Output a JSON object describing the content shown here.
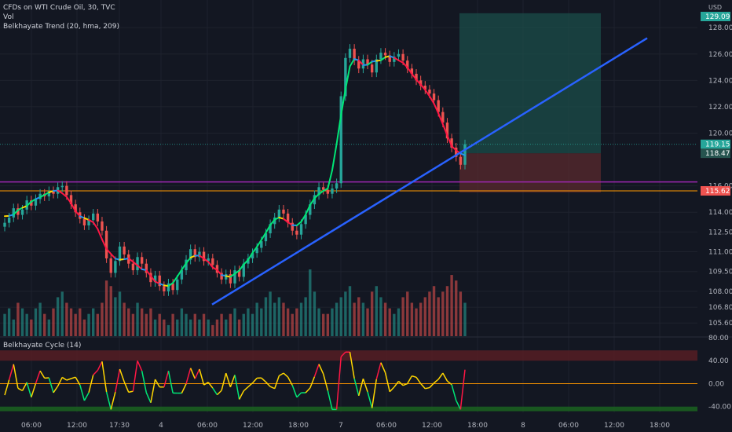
{
  "header": {
    "title": "CFDs on WTI Crude Oil, 30, TVC",
    "vol_label": "Vol",
    "indicator_label": "Belkhayate Trend (20, hma, 209)",
    "currency": "USD"
  },
  "oscillator": {
    "label": "Belkhayate Cycle (14)",
    "ticks": [
      "80.00",
      "40.00",
      "0.00",
      "-40.00"
    ]
  },
  "colors": {
    "background": "#131722",
    "grid": "#1e222d",
    "axis_text": "#b2b5be",
    "candle_up": "#26a69a",
    "candle_down": "#ef5350",
    "trendline": "#2962ff",
    "trend_green": "#00e676",
    "trend_red": "#ff1744",
    "trend_yellow": "#ffd600",
    "trend_blue": "#2196f3",
    "target_zone": "#1b4d4a",
    "stop_zone": "#5a2a2e",
    "level_purple": "#9c27b0",
    "level_orange": "#ff9800"
  },
  "chart_data": {
    "type": "candlestick",
    "title": "CFDs on WTI Crude Oil, 30, TVC",
    "y_axis": {
      "ticks": [
        "128.00",
        "126.00",
        "124.00",
        "122.00",
        "120.00",
        "116.00",
        "114.00",
        "112.50",
        "111.00",
        "109.50",
        "108.00",
        "106.80",
        "105.60"
      ],
      "range": [
        104.6,
        129.5
      ],
      "top_label": "129.09"
    },
    "x_axis": {
      "ticks": [
        "06:00",
        "12:00",
        "17:30",
        "4",
        "06:00",
        "12:00",
        "18:00",
        "7",
        "06:00",
        "12:00",
        "18:00",
        "8",
        "06:00",
        "12:00",
        "18:00"
      ]
    },
    "price_labels": [
      {
        "value": 119.15,
        "text": "119.15"
      },
      {
        "value": 118.47,
        "text": "118.47"
      },
      {
        "value": 115.62,
        "text": "115.62"
      }
    ],
    "horizontal_levels": [
      116.3,
      115.62
    ],
    "long_position": {
      "entry": 118.47,
      "target": 129.09,
      "stop": 115.5
    },
    "trendline": {
      "start": 107.0,
      "end": 127.2
    },
    "close_prices": [
      113.2,
      113.6,
      114.3,
      113.8,
      114.2,
      114.9,
      114.5,
      115.0,
      115.4,
      115.2,
      115.6,
      115.4,
      115.9,
      116.0,
      115.3,
      114.6,
      114.0,
      113.5,
      113.0,
      113.4,
      113.9,
      113.3,
      112.6,
      110.5,
      109.4,
      110.3,
      111.4,
      110.8,
      110.1,
      109.6,
      110.6,
      110.1,
      109.4,
      108.7,
      109.2,
      108.4,
      108.0,
      108.6,
      108.1,
      108.9,
      109.6,
      110.4,
      111.2,
      110.6,
      111.0,
      110.3,
      110.5,
      110.0,
      109.4,
      108.9,
      109.3,
      108.6,
      109.6,
      109.1,
      110.1,
      110.5,
      110.9,
      111.3,
      111.8,
      112.4,
      113.1,
      113.6,
      114.2,
      113.9,
      113.2,
      112.6,
      112.3,
      113.1,
      113.8,
      114.6,
      115.3,
      115.9,
      115.7,
      115.4,
      115.8,
      116.2,
      122.8,
      125.7,
      126.4,
      125.5,
      124.9,
      125.6,
      125.2,
      124.6,
      125.6,
      126.1,
      125.9,
      125.4,
      125.8,
      126.0,
      125.5,
      124.9,
      124.5,
      124.0,
      123.6,
      123.3,
      123.0,
      122.5,
      121.6,
      120.8,
      119.6,
      118.9,
      118.2,
      117.6,
      119.15
    ],
    "volume": [
      4,
      5,
      3,
      6,
      5,
      4,
      3,
      5,
      6,
      4,
      3,
      5,
      7,
      8,
      6,
      5,
      4,
      5,
      3,
      4,
      5,
      4,
      6,
      10,
      9,
      7,
      8,
      6,
      5,
      4,
      6,
      5,
      4,
      5,
      3,
      4,
      3,
      2,
      4,
      3,
      5,
      4,
      3,
      4,
      3,
      4,
      3,
      2,
      3,
      4,
      3,
      4,
      5,
      3,
      4,
      5,
      4,
      6,
      5,
      7,
      8,
      6,
      7,
      6,
      5,
      4,
      5,
      6,
      7,
      12,
      8,
      5,
      4,
      4,
      5,
      6,
      7,
      8,
      9,
      6,
      7,
      6,
      5,
      8,
      9,
      7,
      6,
      5,
      4,
      5,
      7,
      8,
      6,
      5,
      6,
      7,
      8,
      9,
      7,
      8,
      9,
      11,
      10,
      8,
      6
    ]
  }
}
